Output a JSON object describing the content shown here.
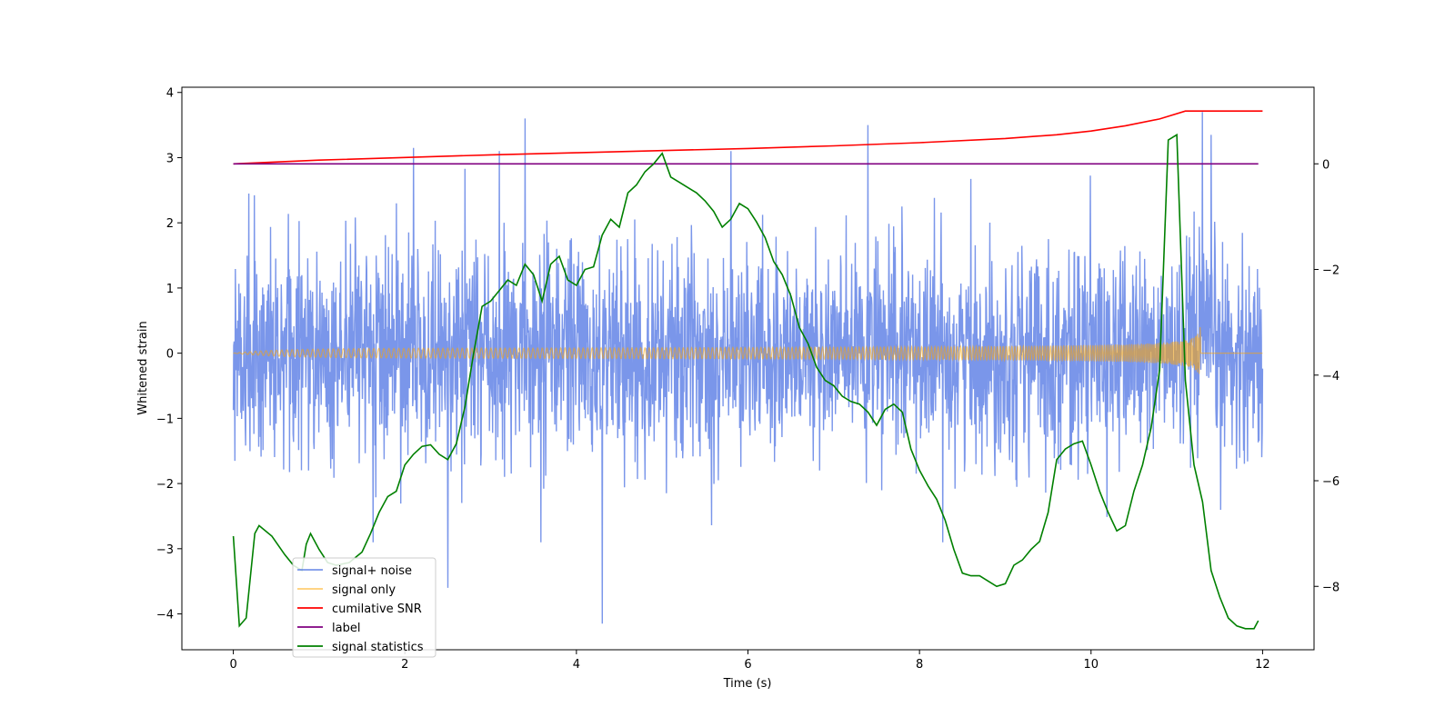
{
  "chart_data": {
    "type": "line",
    "title": "",
    "xlabel": "Time (s)",
    "ylabel": "Whitened strain",
    "y2label": "",
    "xlim": [
      -0.6,
      12.6
    ],
    "ylim": [
      -4.55,
      4.08
    ],
    "y2lim": [
      -9.2,
      1.45
    ],
    "x_ticks": [
      0,
      2,
      4,
      6,
      8,
      10,
      12
    ],
    "y_ticks": [
      -4,
      -3,
      -2,
      -1,
      0,
      1,
      2,
      3,
      4
    ],
    "y2_ticks": [
      -8,
      -6,
      -4,
      -2,
      0
    ],
    "grid": false,
    "legend_position": "lower-left",
    "series": [
      {
        "name": "signal+ noise",
        "axis": "left",
        "color": "#4169e1",
        "opacity": 0.7,
        "kind": "noise",
        "x_range": [
          0,
          12
        ],
        "amplitude_sigma": 0.8,
        "peaks": [
          [
            1.9,
            2.3
          ],
          [
            2.1,
            3.15
          ],
          [
            3.1,
            3.1
          ],
          [
            3.4,
            3.6
          ],
          [
            4.3,
            -4.15
          ],
          [
            2.5,
            -3.6
          ],
          [
            5.8,
            3.1
          ],
          [
            7.4,
            3.5
          ],
          [
            11.3,
            3.7
          ],
          [
            11.4,
            3.35
          ]
        ]
      },
      {
        "name": "signal only",
        "axis": "left",
        "color": "#ffa500",
        "opacity": 0.55,
        "kind": "chirp",
        "x_range": [
          0,
          12
        ],
        "merger_time": 11.28,
        "peak_amplitude": 0.4
      },
      {
        "name": "cumilative SNR",
        "axis": "right",
        "color": "#ff0000",
        "x": [
          0,
          1,
          2,
          3,
          4,
          5,
          6,
          7,
          8,
          9,
          9.6,
          10,
          10.4,
          10.8,
          11.1,
          11.28,
          12
        ],
        "y": [
          0.0,
          0.07,
          0.12,
          0.17,
          0.21,
          0.25,
          0.29,
          0.34,
          0.4,
          0.48,
          0.55,
          0.62,
          0.72,
          0.85,
          1.0,
          1.0,
          1.0
        ]
      },
      {
        "name": "label",
        "axis": "right",
        "color": "#800080",
        "x": [
          0,
          11.95
        ],
        "y": [
          0,
          0
        ]
      },
      {
        "name": "signal statistics",
        "axis": "right",
        "color": "#008000",
        "x": [
          0,
          0.07,
          0.15,
          0.25,
          0.3,
          0.45,
          0.6,
          0.7,
          0.8,
          0.85,
          0.9,
          1.0,
          1.1,
          1.2,
          1.35,
          1.5,
          1.6,
          1.7,
          1.8,
          1.9,
          2.0,
          2.1,
          2.2,
          2.3,
          2.4,
          2.5,
          2.6,
          2.7,
          2.8,
          2.9,
          3.0,
          3.1,
          3.2,
          3.3,
          3.4,
          3.5,
          3.6,
          3.7,
          3.8,
          3.9,
          4.0,
          4.1,
          4.2,
          4.3,
          4.4,
          4.5,
          4.6,
          4.7,
          4.8,
          4.9,
          5.0,
          5.1,
          5.2,
          5.3,
          5.4,
          5.5,
          5.6,
          5.7,
          5.8,
          5.9,
          6.0,
          6.1,
          6.2,
          6.3,
          6.4,
          6.5,
          6.6,
          6.7,
          6.8,
          6.9,
          7.0,
          7.1,
          7.2,
          7.3,
          7.4,
          7.5,
          7.6,
          7.7,
          7.8,
          7.9,
          8.0,
          8.1,
          8.2,
          8.3,
          8.4,
          8.5,
          8.6,
          8.7,
          8.8,
          8.9,
          9.0,
          9.1,
          9.2,
          9.3,
          9.4,
          9.5,
          9.6,
          9.7,
          9.8,
          9.9,
          10.0,
          10.1,
          10.2,
          10.3,
          10.4,
          10.5,
          10.6,
          10.7,
          10.8,
          10.9,
          11.0,
          11.1,
          11.2,
          11.3,
          11.4,
          11.5,
          11.6,
          11.7,
          11.8,
          11.9,
          11.95
        ],
        "y": [
          -7.05,
          -8.75,
          -8.6,
          -7.0,
          -6.85,
          -7.05,
          -7.4,
          -7.6,
          -7.7,
          -7.2,
          -7.0,
          -7.3,
          -7.55,
          -7.6,
          -7.55,
          -7.35,
          -7.0,
          -6.6,
          -6.3,
          -6.2,
          -5.7,
          -5.5,
          -5.35,
          -5.32,
          -5.5,
          -5.6,
          -5.3,
          -4.6,
          -3.6,
          -2.7,
          -2.6,
          -2.4,
          -2.2,
          -2.3,
          -1.9,
          -2.1,
          -2.6,
          -1.9,
          -1.75,
          -2.2,
          -2.3,
          -2.0,
          -1.95,
          -1.35,
          -1.05,
          -1.2,
          -0.55,
          -0.4,
          -0.15,
          0.0,
          0.2,
          -0.25,
          -0.35,
          -0.45,
          -0.55,
          -0.7,
          -0.9,
          -1.2,
          -1.05,
          -0.75,
          -0.85,
          -1.1,
          -1.4,
          -1.85,
          -2.1,
          -2.5,
          -3.1,
          -3.4,
          -3.85,
          -4.1,
          -4.2,
          -4.4,
          -4.5,
          -4.55,
          -4.7,
          -4.95,
          -4.65,
          -4.55,
          -4.7,
          -5.4,
          -5.8,
          -6.1,
          -6.35,
          -6.75,
          -7.3,
          -7.75,
          -7.8,
          -7.8,
          -7.9,
          -8.0,
          -7.95,
          -7.6,
          -7.5,
          -7.3,
          -7.15,
          -6.6,
          -5.6,
          -5.4,
          -5.3,
          -5.25,
          -5.7,
          -6.2,
          -6.6,
          -6.95,
          -6.85,
          -6.2,
          -5.7,
          -5.0,
          -3.9,
          0.45,
          0.55,
          -4.1,
          -5.7,
          -6.4,
          -7.7,
          -8.2,
          -8.6,
          -8.75,
          -8.8,
          -8.8,
          -8.65
        ]
      }
    ]
  }
}
